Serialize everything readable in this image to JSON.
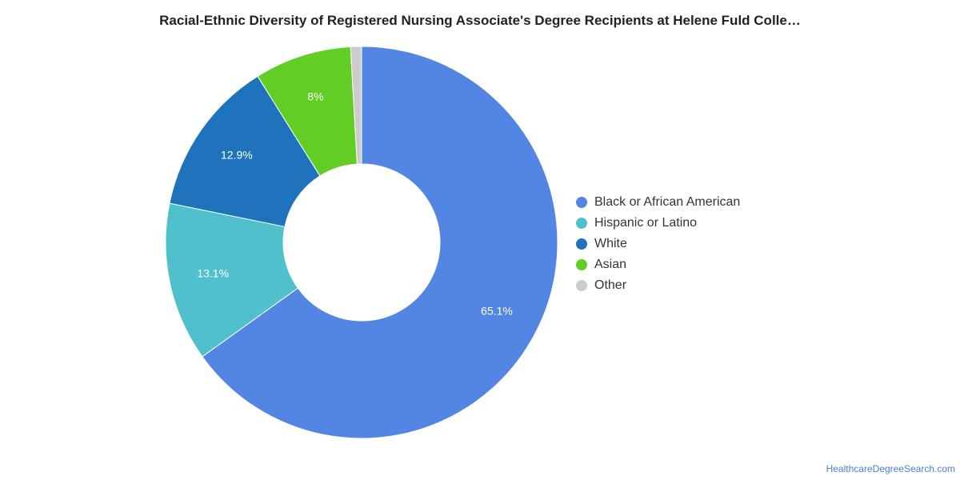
{
  "chart_data": {
    "type": "pie",
    "variant": "donut",
    "title": "Racial-Ethnic Diversity of Registered Nursing Associate's Degree Recipients at Helene Fuld Colle…",
    "legend_position": "right",
    "slices": [
      {
        "label": "Black or African American",
        "value": 65.1,
        "display": "65.1%",
        "color": "#5385e3"
      },
      {
        "label": "Hispanic or Latino",
        "value": 13.1,
        "display": "13.1%",
        "color": "#50c0cd"
      },
      {
        "label": "White",
        "value": 12.9,
        "display": "12.9%",
        "color": "#1f73bd"
      },
      {
        "label": "Asian",
        "value": 8.0,
        "display": "8%",
        "color": "#62cd24"
      },
      {
        "label": "Other",
        "value": 0.9,
        "display": "",
        "color": "#cccccc"
      }
    ]
  },
  "footer": {
    "source": "HealthcareDegreeSearch.com"
  }
}
